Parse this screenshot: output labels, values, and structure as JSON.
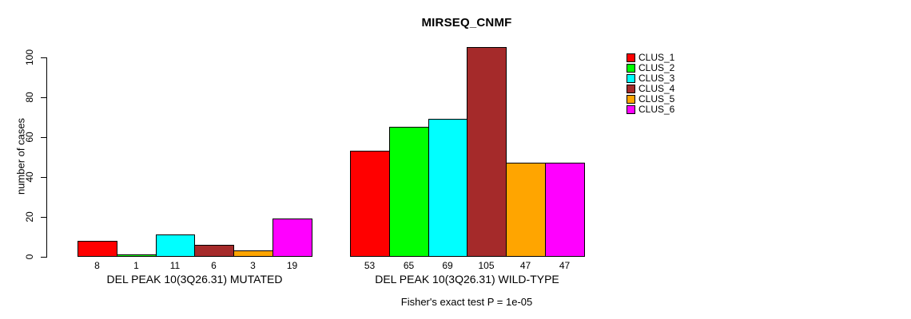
{
  "title": "MIRSEQ_CNMF",
  "chart_data": {
    "type": "bar",
    "title": "MIRSEQ_CNMF",
    "xlabel": "",
    "ylabel": "number of cases",
    "ylim": [
      0,
      110
    ],
    "yticks": [
      0,
      20,
      40,
      60,
      80,
      100
    ],
    "grid": false,
    "legend_position": "right-outside",
    "series": [
      {
        "name": "CLUS_1",
        "color": "#FF0000",
        "values": [
          8,
          53
        ]
      },
      {
        "name": "CLUS_2",
        "color": "#00FF00",
        "values": [
          1,
          65
        ]
      },
      {
        "name": "CLUS_3",
        "color": "#00FFFF",
        "values": [
          11,
          69
        ]
      },
      {
        "name": "CLUS_4",
        "color": "#A52A2A",
        "values": [
          6,
          105
        ]
      },
      {
        "name": "CLUS_5",
        "color": "#FFA500",
        "values": [
          3,
          47
        ]
      },
      {
        "name": "CLUS_6",
        "color": "#FF00FF",
        "values": [
          19,
          47
        ]
      }
    ],
    "categories": [
      "DEL PEAK 10(3Q26.31) MUTATED",
      "DEL PEAK 10(3Q26.31) WILD-TYPE"
    ],
    "groups": [
      {
        "label": "DEL PEAK 10(3Q26.31) MUTATED",
        "values": [
          8,
          1,
          11,
          6,
          3,
          19
        ]
      },
      {
        "label": "DEL PEAK 10(3Q26.31) WILD-TYPE",
        "values": [
          53,
          65,
          69,
          105,
          47,
          47
        ]
      }
    ],
    "bar_value_labels_shown": true,
    "footnote": "Fisher's exact test P = 1e-05",
    "bar_border_color": "#000000",
    "background_color": "#FFFFFF",
    "text_color": "#000000"
  }
}
